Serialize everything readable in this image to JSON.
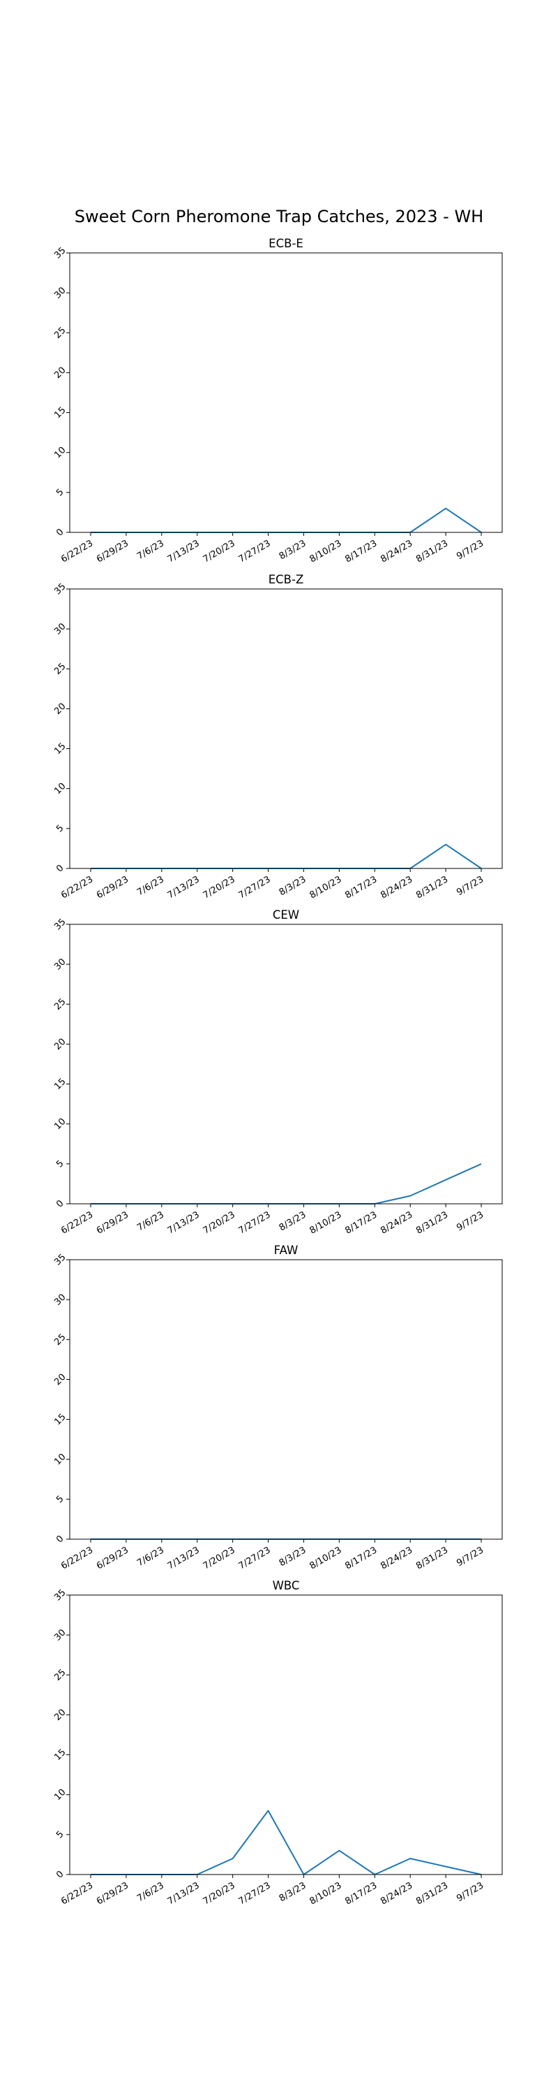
{
  "figure": {
    "title": "Sweet Corn Pheromone Trap Catches, 2023 - WH"
  },
  "chart_data": [
    {
      "type": "line",
      "title": "ECB-E",
      "categories": [
        "6/22/23",
        "6/29/23",
        "7/6/23",
        "7/13/23",
        "7/20/23",
        "7/27/23",
        "8/3/23",
        "8/10/23",
        "8/17/23",
        "8/24/23",
        "8/31/23",
        "9/7/23"
      ],
      "values": [
        0,
        0,
        0,
        0,
        0,
        0,
        0,
        0,
        0,
        0,
        3,
        0
      ],
      "ylim": [
        0,
        35
      ],
      "yticks": [
        0,
        5,
        10,
        15,
        20,
        25,
        30,
        35
      ],
      "grid": false,
      "color": "#1f77b4"
    },
    {
      "type": "line",
      "title": "ECB-Z",
      "categories": [
        "6/22/23",
        "6/29/23",
        "7/6/23",
        "7/13/23",
        "7/20/23",
        "7/27/23",
        "8/3/23",
        "8/10/23",
        "8/17/23",
        "8/24/23",
        "8/31/23",
        "9/7/23"
      ],
      "values": [
        0,
        0,
        0,
        0,
        0,
        0,
        0,
        0,
        0,
        0,
        3,
        0
      ],
      "ylim": [
        0,
        35
      ],
      "yticks": [
        0,
        5,
        10,
        15,
        20,
        25,
        30,
        35
      ],
      "grid": false,
      "color": "#1f77b4"
    },
    {
      "type": "line",
      "title": "CEW",
      "categories": [
        "6/22/23",
        "6/29/23",
        "7/6/23",
        "7/13/23",
        "7/20/23",
        "7/27/23",
        "8/3/23",
        "8/10/23",
        "8/17/23",
        "8/24/23",
        "8/31/23",
        "9/7/23"
      ],
      "values": [
        0,
        0,
        0,
        0,
        0,
        0,
        0,
        0,
        0,
        1,
        3,
        5
      ],
      "ylim": [
        0,
        35
      ],
      "yticks": [
        0,
        5,
        10,
        15,
        20,
        25,
        30,
        35
      ],
      "grid": false,
      "color": "#1f77b4"
    },
    {
      "type": "line",
      "title": "FAW",
      "categories": [
        "6/22/23",
        "6/29/23",
        "7/6/23",
        "7/13/23",
        "7/20/23",
        "7/27/23",
        "8/3/23",
        "8/10/23",
        "8/17/23",
        "8/24/23",
        "8/31/23",
        "9/7/23"
      ],
      "values": [
        0,
        0,
        0,
        0,
        0,
        0,
        0,
        0,
        0,
        0,
        0,
        0
      ],
      "ylim": [
        0,
        35
      ],
      "yticks": [
        0,
        5,
        10,
        15,
        20,
        25,
        30,
        35
      ],
      "grid": false,
      "color": "#1f77b4"
    },
    {
      "type": "line",
      "title": "WBC",
      "categories": [
        "6/22/23",
        "6/29/23",
        "7/6/23",
        "7/13/23",
        "7/20/23",
        "7/27/23",
        "8/3/23",
        "8/10/23",
        "8/17/23",
        "8/24/23",
        "8/31/23",
        "9/7/23"
      ],
      "values": [
        0,
        0,
        0,
        0,
        2,
        8,
        0,
        3,
        0,
        2,
        1,
        0
      ],
      "ylim": [
        0,
        35
      ],
      "yticks": [
        0,
        5,
        10,
        15,
        20,
        25,
        30,
        35
      ],
      "grid": false,
      "color": "#1f77b4"
    }
  ]
}
